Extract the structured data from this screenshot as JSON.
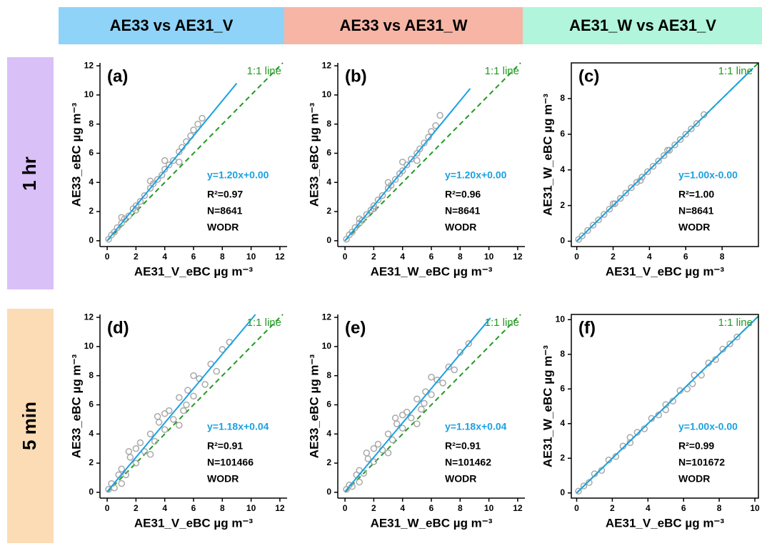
{
  "column_headers": [
    "AE33 vs AE31_V",
    "AE33 vs AE31_W",
    "AE31_W vs AE31_V"
  ],
  "row_labels": [
    "1 hr",
    "5 min"
  ],
  "chart_data": [
    {
      "type": "scatter",
      "panel": "(a)",
      "xlabel": "AE31_V_eBC µg m⁻³",
      "ylabel": "AE33_eBC µg m⁻³",
      "xlim": [
        -0.5,
        12.5
      ],
      "ylim": [
        -0.4,
        12.2
      ],
      "xticks": [
        0,
        2,
        4,
        6,
        8,
        10,
        12
      ],
      "yticks": [
        0,
        2,
        4,
        6,
        8,
        10,
        12
      ],
      "color": "#a9a9a9",
      "box": false,
      "x": [
        0.1,
        0.3,
        0.5,
        0.7,
        1.0,
        1.2,
        1.5,
        1.8,
        2.0,
        2.3,
        2.6,
        3.0,
        3.2,
        3.5,
        3.8,
        4.0,
        4.3,
        4.6,
        5.0,
        5.2,
        5.5,
        5.8,
        6.0,
        6.3,
        6.6,
        1.0,
        2.0,
        3.0,
        4.0,
        5.0
      ],
      "values": [
        0.1,
        0.4,
        0.6,
        0.9,
        1.2,
        1.5,
        1.7,
        2.2,
        2.4,
        2.7,
        3.1,
        3.6,
        3.9,
        4.2,
        4.5,
        4.9,
        5.2,
        5.5,
        6.1,
        6.4,
        6.8,
        7.2,
        7.6,
        8.0,
        8.4,
        1.6,
        2.1,
        4.1,
        5.5,
        5.4
      ],
      "fit": {
        "slope": 1.2,
        "intercept": 0.0,
        "color": "#1ba1e2",
        "range": [
          0,
          9
        ]
      },
      "identity_label": "1:1 line",
      "identity_color": "#229922",
      "annotations": [
        "y=1.20x+0.00",
        "R²=0.97",
        "N=8641",
        "WODR"
      ]
    },
    {
      "type": "scatter",
      "panel": "(b)",
      "xlabel": "AE31_W_eBC µg m⁻³",
      "ylabel": "AE33_eBC µg m⁻³",
      "xlim": [
        -0.5,
        12.5
      ],
      "ylim": [
        -0.4,
        12.2
      ],
      "xticks": [
        0,
        2,
        4,
        6,
        8,
        10,
        12
      ],
      "yticks": [
        0,
        2,
        4,
        6,
        8,
        10,
        12
      ],
      "color": "#a9a9a9",
      "box": false,
      "x": [
        0.1,
        0.3,
        0.5,
        0.7,
        1.0,
        1.2,
        1.5,
        1.8,
        2.0,
        2.3,
        2.6,
        3.0,
        3.2,
        3.5,
        3.8,
        4.0,
        4.3,
        4.6,
        5.0,
        5.2,
        5.5,
        5.8,
        6.0,
        6.3,
        6.6,
        1.0,
        2.0,
        3.0,
        4.0,
        5.0
      ],
      "values": [
        0.1,
        0.4,
        0.6,
        0.9,
        1.2,
        1.4,
        1.8,
        2.1,
        2.4,
        2.8,
        3.1,
        3.6,
        3.8,
        4.2,
        4.6,
        4.8,
        5.2,
        5.6,
        6.0,
        6.3,
        6.7,
        7.1,
        7.5,
        7.9,
        8.6,
        1.5,
        2.2,
        4.0,
        5.4,
        5.5
      ],
      "fit": {
        "slope": 1.2,
        "intercept": 0.0,
        "color": "#1ba1e2",
        "range": [
          0,
          8.7
        ]
      },
      "identity_label": "1:1 line",
      "identity_color": "#229922",
      "annotations": [
        "y=1.20x+0.00",
        "R²=0.96",
        "N=8641",
        "WODR"
      ]
    },
    {
      "type": "scatter",
      "panel": "(c)",
      "xlabel": "AE31_V_eBC µg m⁻³",
      "ylabel": "AE31_W_eBC µg m⁻³",
      "xlim": [
        -0.3,
        10
      ],
      "ylim": [
        -0.3,
        10
      ],
      "xticks": [
        0,
        2,
        4,
        6,
        8
      ],
      "yticks": [
        0,
        2,
        4,
        6,
        8
      ],
      "color": "#a9a9a9",
      "box": true,
      "x": [
        0.1,
        0.3,
        0.6,
        0.9,
        1.2,
        1.5,
        1.8,
        2.1,
        2.4,
        2.7,
        3.0,
        3.3,
        3.6,
        3.9,
        4.2,
        4.5,
        4.8,
        5.1,
        5.4,
        5.7,
        6.0,
        6.3,
        6.6,
        7.0,
        2.0,
        3.5,
        5.0
      ],
      "values": [
        0.1,
        0.3,
        0.6,
        0.9,
        1.2,
        1.5,
        1.8,
        2.1,
        2.4,
        2.7,
        3.0,
        3.3,
        3.6,
        3.9,
        4.2,
        4.5,
        4.8,
        5.1,
        5.4,
        5.7,
        6.0,
        6.3,
        6.6,
        7.1,
        2.1,
        3.4,
        5.1
      ],
      "fit": {
        "slope": 1.0,
        "intercept": 0.0,
        "color": "#1ba1e2",
        "range": [
          0,
          9.7
        ]
      },
      "identity_label": "1:1 line",
      "identity_color": "#229922",
      "annotations": [
        "y=1.00x-0.00",
        "R²=1.00",
        "N=8641",
        "WODR"
      ]
    },
    {
      "type": "scatter",
      "panel": "(d)",
      "xlabel": "AE31_V_eBC µg m⁻³",
      "ylabel": "AE33_eBC µg m⁻³",
      "xlim": [
        -0.5,
        12.5
      ],
      "ylim": [
        -0.4,
        12.2
      ],
      "xticks": [
        0,
        2,
        4,
        6,
        8,
        10,
        12
      ],
      "yticks": [
        0,
        2,
        4,
        6,
        8,
        10,
        12
      ],
      "color": "#a9a9a9",
      "box": false,
      "x": [
        0.1,
        0.3,
        0.5,
        0.8,
        1.0,
        1.3,
        1.6,
        2.0,
        2.3,
        2.6,
        3.0,
        3.3,
        3.6,
        4.0,
        4.3,
        4.6,
        5.0,
        5.3,
        5.6,
        6.0,
        6.4,
        6.8,
        7.2,
        7.6,
        8.0,
        8.5,
        1.0,
        2.0,
        3.0,
        4.0,
        5.0,
        6.0,
        1.5,
        3.5,
        5.5
      ],
      "values": [
        0.2,
        0.6,
        0.3,
        1.2,
        1.6,
        1.2,
        2.4,
        2.0,
        3.4,
        2.8,
        4.0,
        3.5,
        4.8,
        4.3,
        5.6,
        5.0,
        6.5,
        5.6,
        7.0,
        6.6,
        7.8,
        7.4,
        8.8,
        8.3,
        9.8,
        10.3,
        0.6,
        3.0,
        2.6,
        5.4,
        4.6,
        8.0,
        2.8,
        5.2,
        6.0
      ],
      "fit": {
        "slope": 1.18,
        "intercept": 0.04,
        "color": "#1ba1e2",
        "range": [
          0,
          10.3
        ]
      },
      "identity_label": "1:1 line",
      "identity_color": "#229922",
      "annotations": [
        "y=1.18x+0.04",
        "R²=0.91",
        "N=101466",
        "WODR"
      ]
    },
    {
      "type": "scatter",
      "panel": "(e)",
      "xlabel": "AE31_W_eBC µg m⁻³",
      "ylabel": "AE33_eBC µg m⁻³",
      "xlim": [
        -0.5,
        12.5
      ],
      "ylim": [
        -0.4,
        12.2
      ],
      "xticks": [
        0,
        2,
        4,
        6,
        8,
        10,
        12
      ],
      "yticks": [
        0,
        2,
        4,
        6,
        8,
        10,
        12
      ],
      "color": "#a9a9a9",
      "box": false,
      "x": [
        0.1,
        0.3,
        0.5,
        0.8,
        1.0,
        1.3,
        1.6,
        2.0,
        2.3,
        2.6,
        3.0,
        3.3,
        3.6,
        4.0,
        4.3,
        4.6,
        5.0,
        5.3,
        5.6,
        6.0,
        6.4,
        6.8,
        7.2,
        7.6,
        8.0,
        8.6,
        1.0,
        2.0,
        3.0,
        4.0,
        5.0,
        6.0,
        1.5,
        3.5,
        5.5
      ],
      "values": [
        0.2,
        0.5,
        0.4,
        1.2,
        1.5,
        1.3,
        2.3,
        2.1,
        3.3,
        2.9,
        4.0,
        3.6,
        4.7,
        4.4,
        5.5,
        5.1,
        6.4,
        5.7,
        6.9,
        6.7,
        7.7,
        7.5,
        8.6,
        8.4,
        9.6,
        10.2,
        0.7,
        3.0,
        2.7,
        5.3,
        4.7,
        7.9,
        2.7,
        5.1,
        6.1
      ],
      "fit": {
        "slope": 1.18,
        "intercept": 0.04,
        "color": "#1ba1e2",
        "range": [
          0,
          10.1
        ]
      },
      "identity_label": "1:1 line",
      "identity_color": "#229922",
      "annotations": [
        "y=1.18x+0.04",
        "R²=0.91",
        "N=101462",
        "WODR"
      ]
    },
    {
      "type": "scatter",
      "panel": "(f)",
      "xlabel": "AE31_V_eBC µg m⁻³",
      "ylabel": "AE31_W_eBC µg m⁻³",
      "xlim": [
        -0.3,
        10.2
      ],
      "ylim": [
        -0.3,
        10.3
      ],
      "xticks": [
        0,
        2,
        4,
        6,
        8,
        10
      ],
      "yticks": [
        0,
        2,
        4,
        6,
        8,
        10
      ],
      "color": "#a9a9a9",
      "box": true,
      "x": [
        0.1,
        0.4,
        0.7,
        1.0,
        1.4,
        1.8,
        2.2,
        2.6,
        3.0,
        3.4,
        3.8,
        4.2,
        4.6,
        5.0,
        5.4,
        5.8,
        6.2,
        6.6,
        7.0,
        7.4,
        7.8,
        8.2,
        8.6,
        9.0,
        3.0,
        5.0,
        6.5
      ],
      "values": [
        0.1,
        0.4,
        0.6,
        1.1,
        1.3,
        1.9,
        2.1,
        2.7,
        2.9,
        3.5,
        3.7,
        4.3,
        4.5,
        5.1,
        5.3,
        5.9,
        6.0,
        6.8,
        6.8,
        7.5,
        7.7,
        8.3,
        8.6,
        9.0,
        3.2,
        4.8,
        6.3
      ],
      "fit": {
        "slope": 1.0,
        "intercept": 0.0,
        "color": "#1ba1e2",
        "range": [
          0,
          10.1
        ]
      },
      "identity_label": "1:1 line",
      "identity_color": "#229922",
      "annotations": [
        "y=1.00x-0.00",
        "R²=0.99",
        "N=101672",
        "WODR"
      ]
    }
  ]
}
